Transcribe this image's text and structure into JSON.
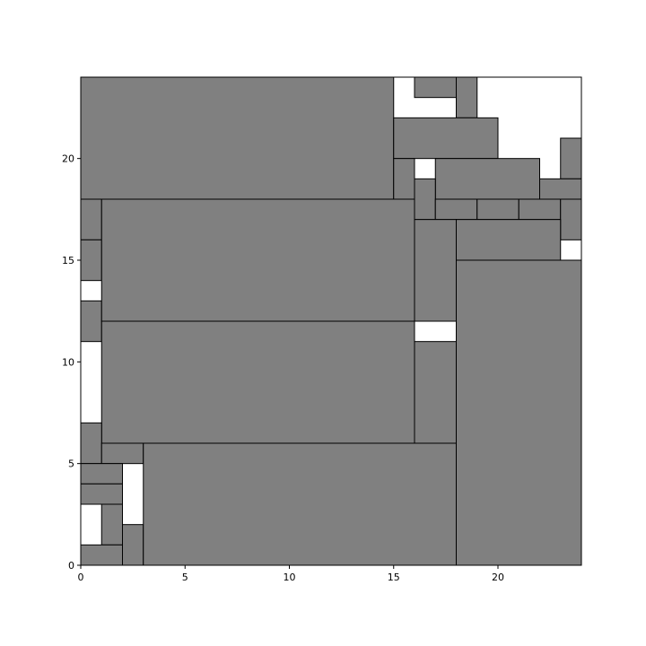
{
  "chart_data": {
    "type": "rectangles",
    "title": "",
    "xlabel": "",
    "ylabel": "",
    "xlim": [
      0,
      24
    ],
    "ylim": [
      0,
      24
    ],
    "grid": false,
    "fill_color": "#808080",
    "edge_color": "#000000",
    "x_ticks": [
      0,
      5,
      10,
      15,
      20
    ],
    "y_ticks": [
      0,
      5,
      10,
      15,
      20
    ],
    "rectangles": [
      {
        "x": 0,
        "y": 18,
        "w": 15,
        "h": 6
      },
      {
        "x": 16,
        "y": 23,
        "w": 2,
        "h": 1
      },
      {
        "x": 18,
        "y": 22,
        "w": 1,
        "h": 2
      },
      {
        "x": 15,
        "y": 20,
        "w": 5,
        "h": 2
      },
      {
        "x": 23,
        "y": 19,
        "w": 1,
        "h": 2
      },
      {
        "x": 15,
        "y": 18,
        "w": 1,
        "h": 2
      },
      {
        "x": 17,
        "y": 18,
        "w": 5,
        "h": 2
      },
      {
        "x": 22,
        "y": 18,
        "w": 2,
        "h": 1
      },
      {
        "x": 16,
        "y": 17,
        "w": 1,
        "h": 2
      },
      {
        "x": 17,
        "y": 17,
        "w": 2,
        "h": 1
      },
      {
        "x": 19,
        "y": 17,
        "w": 2,
        "h": 1
      },
      {
        "x": 21,
        "y": 17,
        "w": 2,
        "h": 1
      },
      {
        "x": 23,
        "y": 16,
        "w": 1,
        "h": 2
      },
      {
        "x": 18,
        "y": 15,
        "w": 5,
        "h": 2
      },
      {
        "x": 0,
        "y": 16,
        "w": 1,
        "h": 2
      },
      {
        "x": 0,
        "y": 14,
        "w": 1,
        "h": 2
      },
      {
        "x": 0,
        "y": 11,
        "w": 1,
        "h": 2
      },
      {
        "x": 1,
        "y": 12,
        "w": 15,
        "h": 6
      },
      {
        "x": 16,
        "y": 12,
        "w": 2,
        "h": 5
      },
      {
        "x": 1,
        "y": 6,
        "w": 15,
        "h": 6
      },
      {
        "x": 16,
        "y": 6,
        "w": 2,
        "h": 5
      },
      {
        "x": 18,
        "y": 0,
        "w": 6,
        "h": 15
      },
      {
        "x": 0,
        "y": 5,
        "w": 1,
        "h": 2
      },
      {
        "x": 1,
        "y": 5,
        "w": 2,
        "h": 1
      },
      {
        "x": 0,
        "y": 4,
        "w": 2,
        "h": 1
      },
      {
        "x": 0,
        "y": 3,
        "w": 2,
        "h": 1
      },
      {
        "x": 1,
        "y": 1,
        "w": 1,
        "h": 2
      },
      {
        "x": 0,
        "y": 0,
        "w": 2,
        "h": 1
      },
      {
        "x": 2,
        "y": 0,
        "w": 1,
        "h": 2
      },
      {
        "x": 3,
        "y": 0,
        "w": 15,
        "h": 6
      }
    ]
  }
}
